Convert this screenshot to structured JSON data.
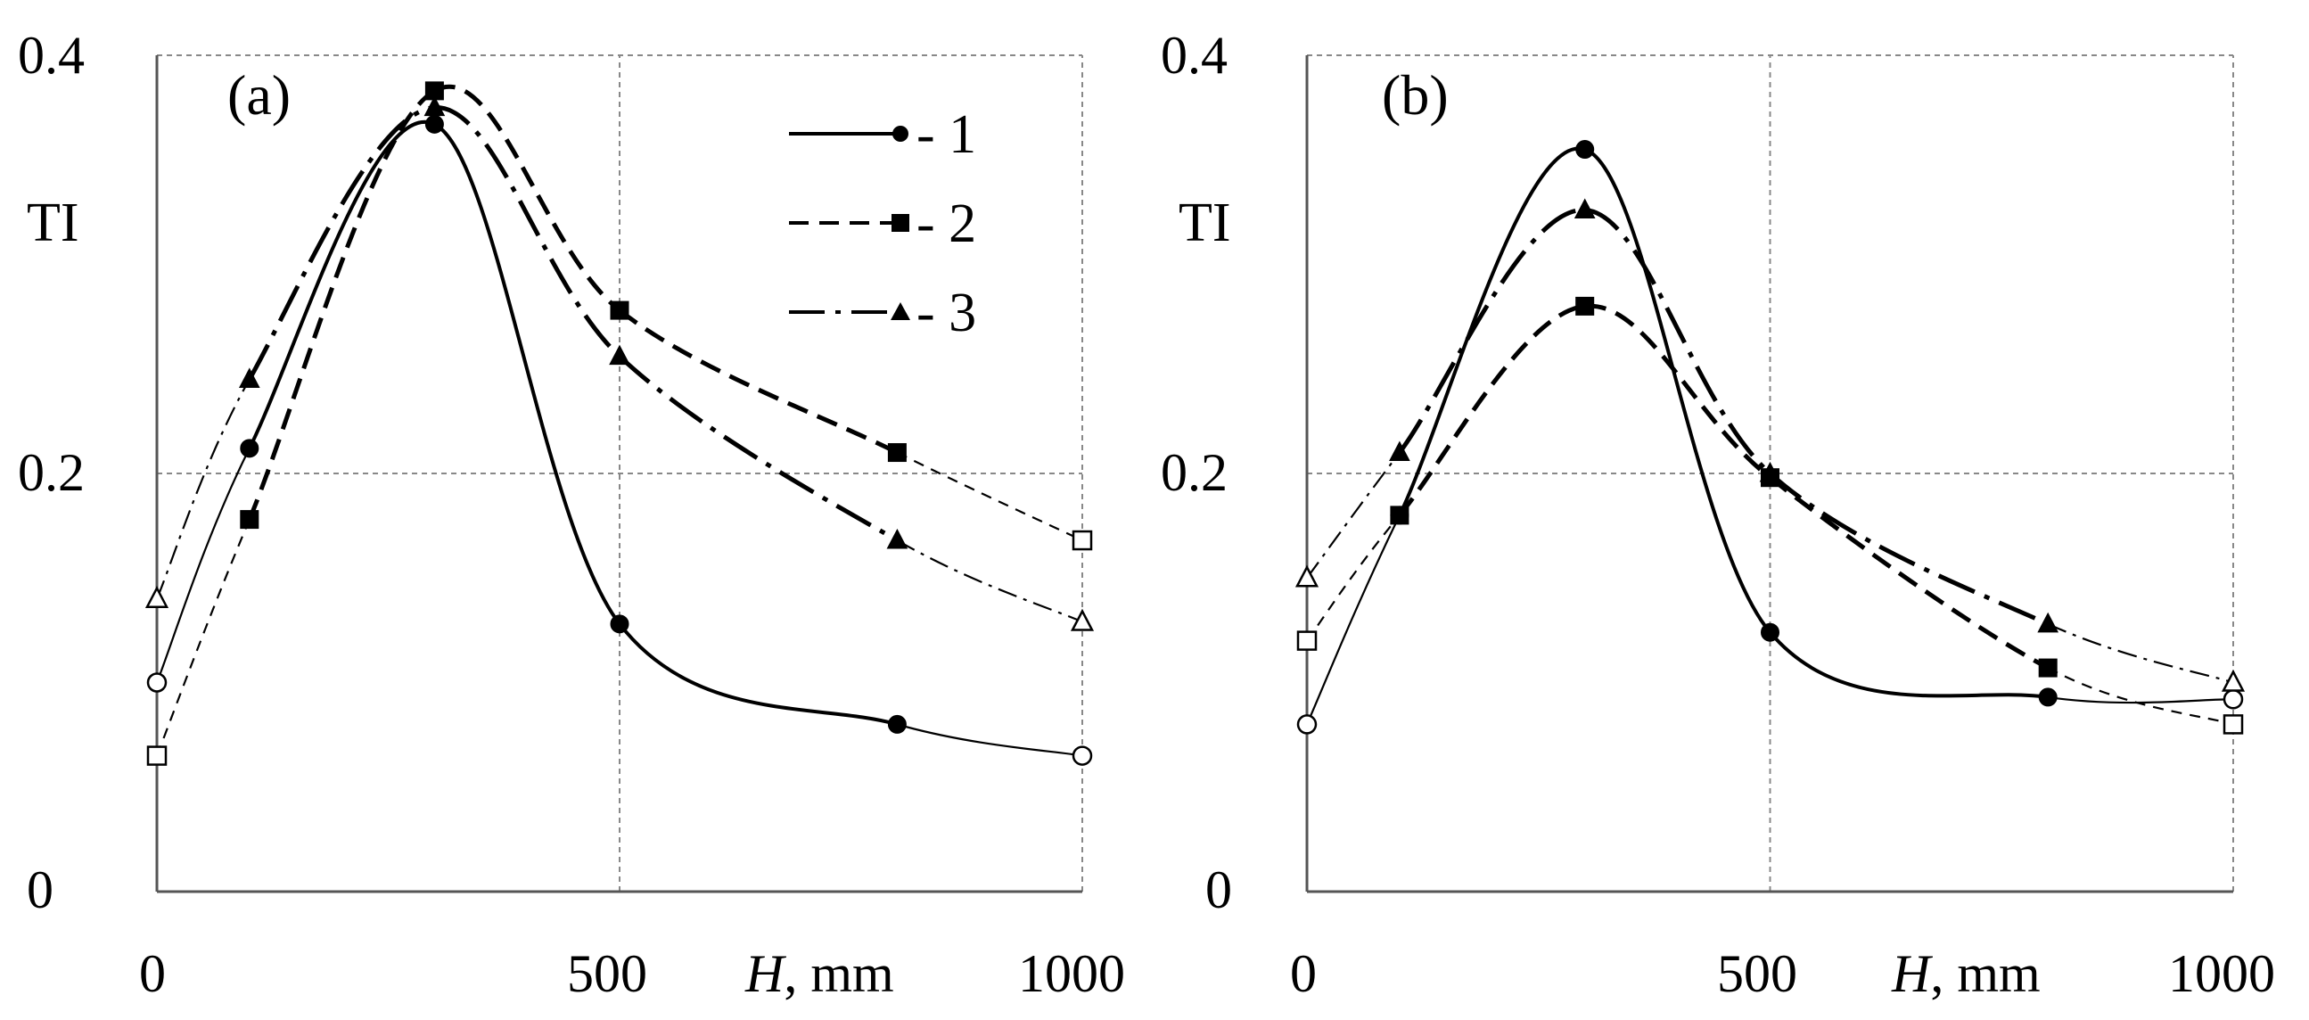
{
  "chart_data": [
    {
      "type": "line",
      "panel_label": "(a)",
      "ylabel": "TI",
      "xlabel_var": "H",
      "xlabel_unit": ", mm",
      "xlim": [
        0,
        1000
      ],
      "ylim": [
        0,
        0.4
      ],
      "xticks": [
        "0",
        "500",
        "1000"
      ],
      "yticks": [
        "0",
        "0.2",
        "0.4"
      ],
      "grid": true,
      "legend": {
        "position": "top-right",
        "entries": [
          "- 1",
          "- 2",
          "- 3"
        ]
      },
      "series": [
        {
          "name": "1",
          "x": [
            0,
            100,
            300,
            500,
            800,
            1000
          ],
          "y": [
            0.1,
            0.212,
            0.367,
            0.128,
            0.08,
            0.065
          ]
        },
        {
          "name": "2",
          "x": [
            0,
            100,
            300,
            500,
            800,
            1000
          ],
          "y": [
            0.065,
            0.178,
            0.383,
            0.278,
            0.21,
            0.168
          ]
        },
        {
          "name": "3",
          "x": [
            0,
            100,
            300,
            500,
            800,
            1000
          ],
          "y": [
            0.14,
            0.245,
            0.375,
            0.256,
            0.168,
            0.129
          ]
        }
      ]
    },
    {
      "type": "line",
      "panel_label": "(b)",
      "ylabel": "TI",
      "xlabel_var": "H",
      "xlabel_unit": ", mm",
      "xlim": [
        0,
        1000
      ],
      "ylim": [
        0,
        0.4
      ],
      "xticks": [
        "0",
        "500",
        "1000"
      ],
      "yticks": [
        "0",
        "0.2",
        "0.4"
      ],
      "grid": true,
      "series": [
        {
          "name": "1",
          "x": [
            0,
            100,
            300,
            500,
            800,
            1000
          ],
          "y": [
            0.08,
            0.18,
            0.355,
            0.124,
            0.093,
            0.092
          ]
        },
        {
          "name": "2",
          "x": [
            0,
            100,
            300,
            500,
            800,
            1000
          ],
          "y": [
            0.12,
            0.18,
            0.28,
            0.198,
            0.107,
            0.08
          ]
        },
        {
          "name": "3",
          "x": [
            0,
            100,
            300,
            500,
            800,
            1000
          ],
          "y": [
            0.15,
            0.21,
            0.326,
            0.2,
            0.128,
            0.1
          ]
        }
      ]
    }
  ]
}
